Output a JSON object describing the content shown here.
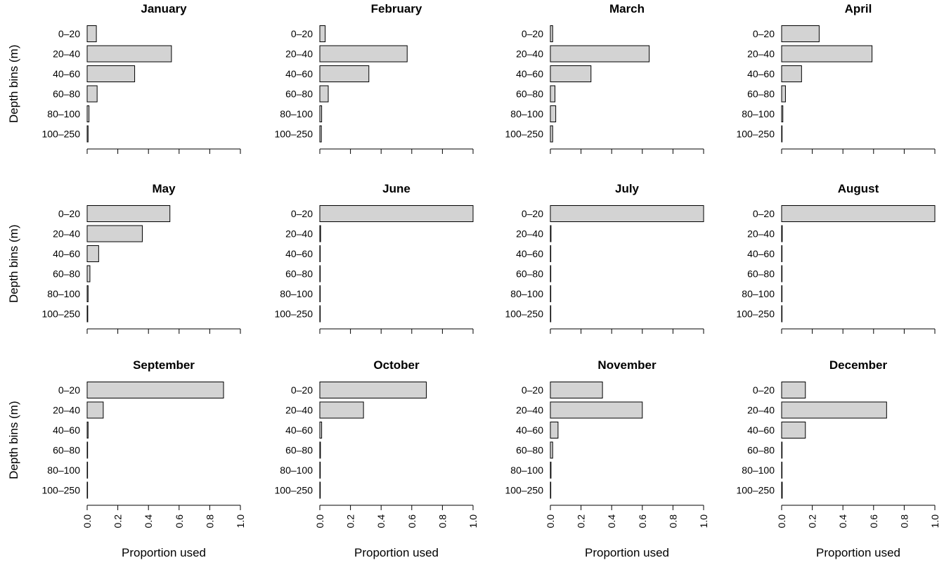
{
  "chart_data": {
    "type": "bar",
    "orientation": "horizontal",
    "layout": "4x3 grid of panels",
    "categories": [
      "0–20",
      "20–40",
      "40–60",
      "60–80",
      "80–100",
      "100–250"
    ],
    "ylabel": "Depth bins (m)",
    "xlabel": "Proportion used",
    "xlim": [
      0,
      1
    ],
    "xticks": [
      "0.0",
      "0.2",
      "0.4",
      "0.6",
      "0.8",
      "1.0"
    ],
    "colors": {
      "bar_fill": "#d3d3d3",
      "bar_stroke": "#000000"
    },
    "panels": [
      {
        "title": "January",
        "values": [
          0.06,
          0.55,
          0.31,
          0.065,
          0.012,
          0.006
        ]
      },
      {
        "title": "February",
        "values": [
          0.035,
          0.57,
          0.32,
          0.055,
          0.012,
          0.01
        ]
      },
      {
        "title": "March",
        "values": [
          0.015,
          0.645,
          0.265,
          0.03,
          0.035,
          0.015
        ]
      },
      {
        "title": "April",
        "values": [
          0.245,
          0.59,
          0.13,
          0.025,
          0.008,
          0.003
        ]
      },
      {
        "title": "May",
        "values": [
          0.54,
          0.36,
          0.075,
          0.018,
          0.006,
          0.004
        ]
      },
      {
        "title": "June",
        "values": [
          1.0,
          0.005,
          0.0,
          0.0,
          0.0,
          0.0
        ]
      },
      {
        "title": "July",
        "values": [
          1.0,
          0.004,
          0.0,
          0.0,
          0.0,
          0.0
        ]
      },
      {
        "title": "August",
        "values": [
          1.0,
          0.004,
          0.0,
          0.0,
          0.0,
          0.0
        ]
      },
      {
        "title": "September",
        "values": [
          0.89,
          0.105,
          0.006,
          0.003,
          0.002,
          0.002
        ]
      },
      {
        "title": "October",
        "values": [
          0.695,
          0.285,
          0.012,
          0.004,
          0.003,
          0.003
        ]
      },
      {
        "title": "November",
        "values": [
          0.34,
          0.6,
          0.05,
          0.015,
          0.004,
          0.002
        ]
      },
      {
        "title": "December",
        "values": [
          0.155,
          0.685,
          0.155,
          0.003,
          0.002,
          0.004
        ]
      }
    ]
  }
}
